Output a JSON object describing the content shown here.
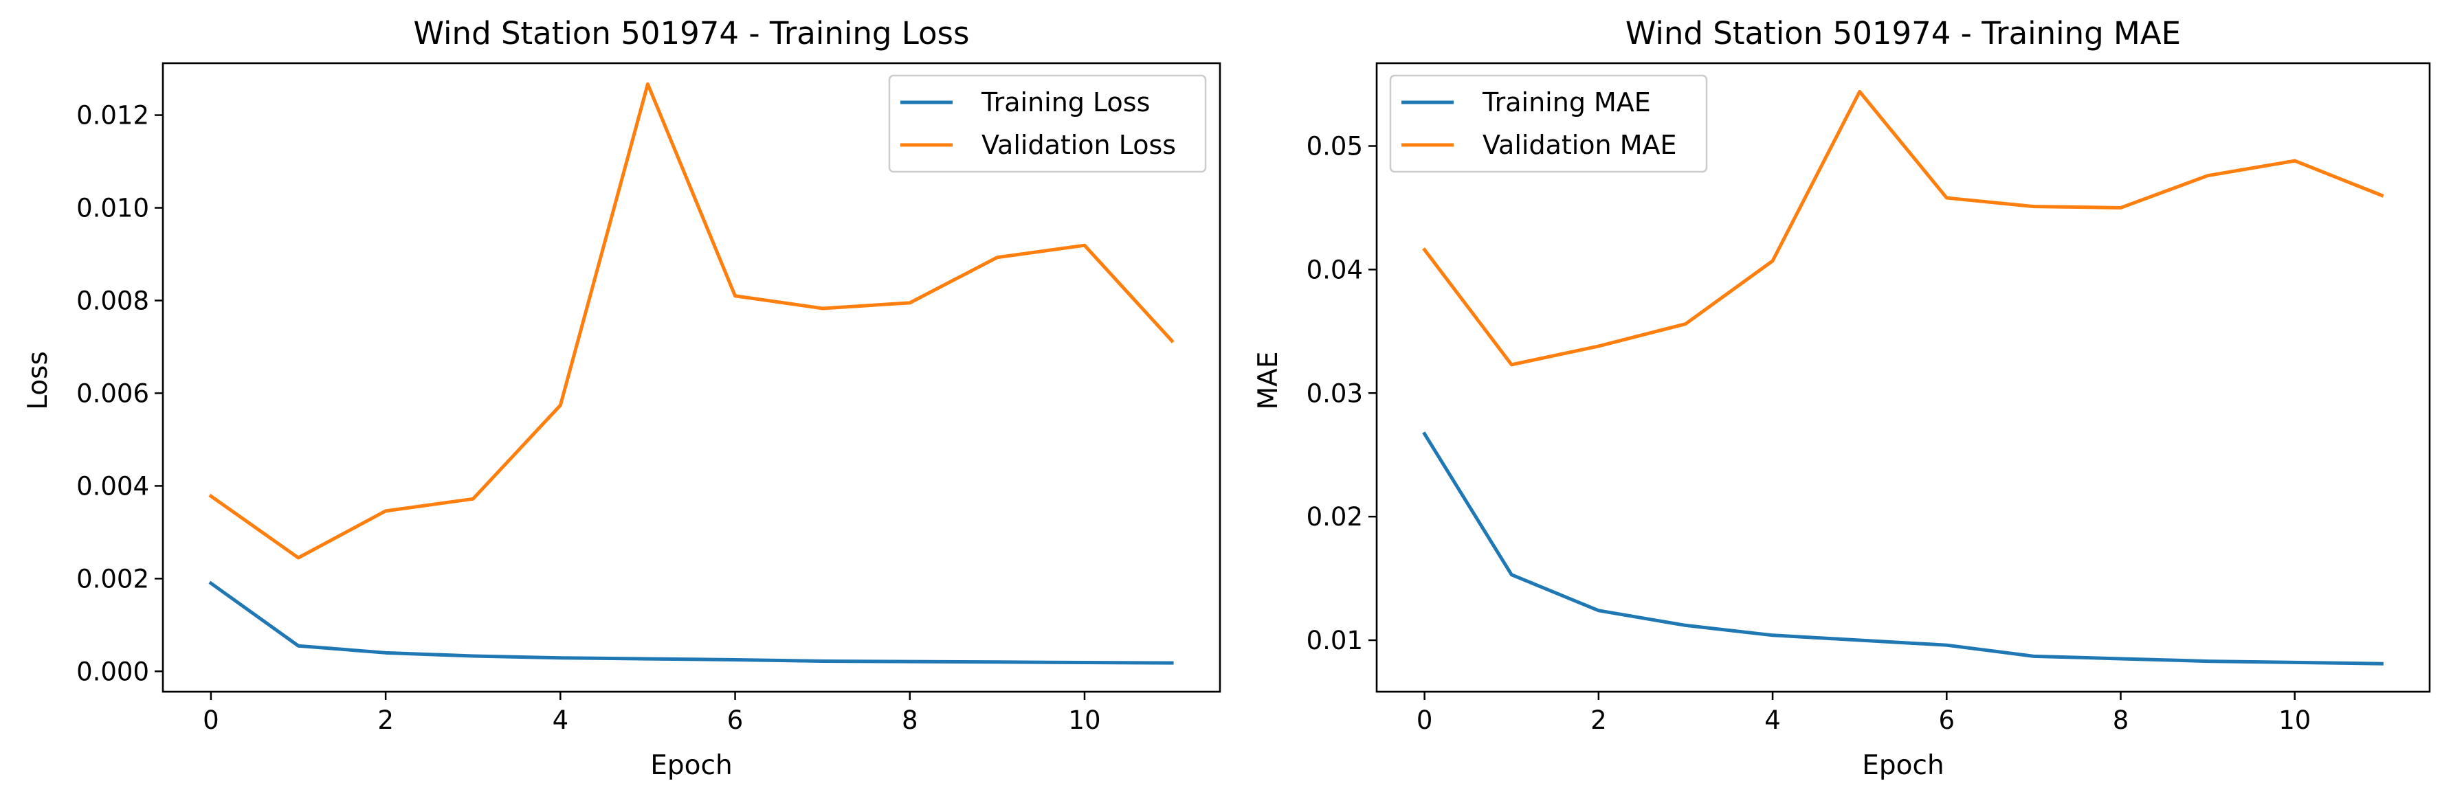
{
  "chart_data": [
    {
      "type": "line",
      "title": "Wind Station 501974 - Training Loss",
      "xlabel": "Epoch",
      "ylabel": "Loss",
      "xlim": [
        -0.55,
        11.55
      ],
      "ylim": [
        -0.00044,
        0.01312
      ],
      "xticks": [
        0,
        2,
        4,
        6,
        8,
        10
      ],
      "xtick_labels": [
        "0",
        "2",
        "4",
        "6",
        "8",
        "10"
      ],
      "yticks": [
        0.0,
        0.002,
        0.004,
        0.006,
        0.008,
        0.01,
        0.012
      ],
      "ytick_labels": [
        "0.000",
        "0.002",
        "0.004",
        "0.006",
        "0.008",
        "0.010",
        "0.012"
      ],
      "grid": false,
      "legend_position": "top-right",
      "x": [
        0,
        1,
        2,
        3,
        4,
        5,
        6,
        7,
        8,
        9,
        10,
        11
      ],
      "series": [
        {
          "name": "Training Loss",
          "color": "#1f77b4",
          "values": [
            0.0019,
            0.00055,
            0.0004,
            0.00033,
            0.00029,
            0.00027,
            0.00025,
            0.00022,
            0.00021,
            0.0002,
            0.00019,
            0.00018
          ]
        },
        {
          "name": "Validation Loss",
          "color": "#ff7f0e",
          "values": [
            0.00378,
            0.00245,
            0.00346,
            0.00372,
            0.00574,
            0.01267,
            0.0081,
            0.00783,
            0.00795,
            0.00893,
            0.00919,
            0.00713
          ]
        }
      ]
    },
    {
      "type": "line",
      "title": "Wind Station 501974 - Training MAE",
      "xlabel": "Epoch",
      "ylabel": "MAE",
      "xlim": [
        -0.55,
        11.55
      ],
      "ylim": [
        0.00583,
        0.0567
      ],
      "xticks": [
        0,
        2,
        4,
        6,
        8,
        10
      ],
      "xtick_labels": [
        "0",
        "2",
        "4",
        "6",
        "8",
        "10"
      ],
      "yticks": [
        0.01,
        0.02,
        0.03,
        0.04,
        0.05
      ],
      "ytick_labels": [
        "0.01",
        "0.02",
        "0.03",
        "0.04",
        "0.05"
      ],
      "grid": false,
      "legend_position": "top-left",
      "x": [
        0,
        1,
        2,
        3,
        4,
        5,
        6,
        7,
        8,
        9,
        10,
        11
      ],
      "series": [
        {
          "name": "Training MAE",
          "color": "#1f77b4",
          "values": [
            0.0267,
            0.0153,
            0.0124,
            0.0112,
            0.0104,
            0.01,
            0.0096,
            0.0087,
            0.0085,
            0.0083,
            0.0082,
            0.0081
          ]
        },
        {
          "name": "Validation MAE",
          "color": "#ff7f0e",
          "values": [
            0.0416,
            0.0323,
            0.0338,
            0.0356,
            0.0407,
            0.0544,
            0.0458,
            0.0451,
            0.045,
            0.0476,
            0.0488,
            0.046
          ]
        }
      ]
    }
  ]
}
